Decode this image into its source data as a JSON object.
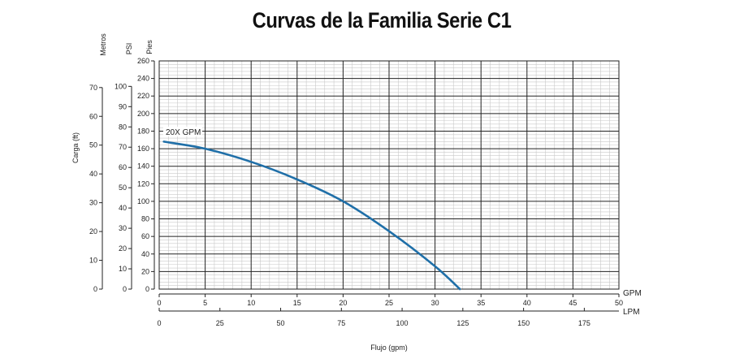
{
  "chart_data": {
    "type": "line",
    "title": "Curvas de la Familia Serie C1",
    "xlabel": "Flujo (gpm)",
    "x_units_primary": "GPM",
    "x_units_secondary": "LPM",
    "x_ticks_gpm": [
      0,
      5,
      10,
      15,
      20,
      25,
      30,
      35,
      40,
      45,
      50
    ],
    "x_ticks_lpm": [
      0,
      25,
      50,
      75,
      100,
      125,
      150,
      175
    ],
    "xlim_gpm": [
      0,
      50
    ],
    "ylim_pies": [
      0,
      260
    ],
    "y_ticks_pies": [
      0,
      20,
      40,
      60,
      80,
      100,
      120,
      140,
      160,
      180,
      200,
      220,
      240,
      260
    ],
    "y_label_pies": "Pies",
    "y_ticks_psi": [
      0,
      10,
      20,
      30,
      40,
      50,
      60,
      70,
      80,
      90,
      100
    ],
    "y_label_psi": "PSI",
    "y_ticks_metros": [
      0,
      10,
      20,
      30,
      40,
      50,
      60,
      70
    ],
    "y_label_metros": "Metros",
    "ylabel": "Carga (ft)",
    "grid": true,
    "series": [
      {
        "name": "20X GPM",
        "color": "#1f6fa8",
        "x": [
          0.5,
          5,
          10,
          15,
          20,
          25,
          30,
          32.7
        ],
        "y": [
          168,
          160,
          145,
          125,
          100,
          66,
          26,
          0
        ]
      }
    ]
  }
}
